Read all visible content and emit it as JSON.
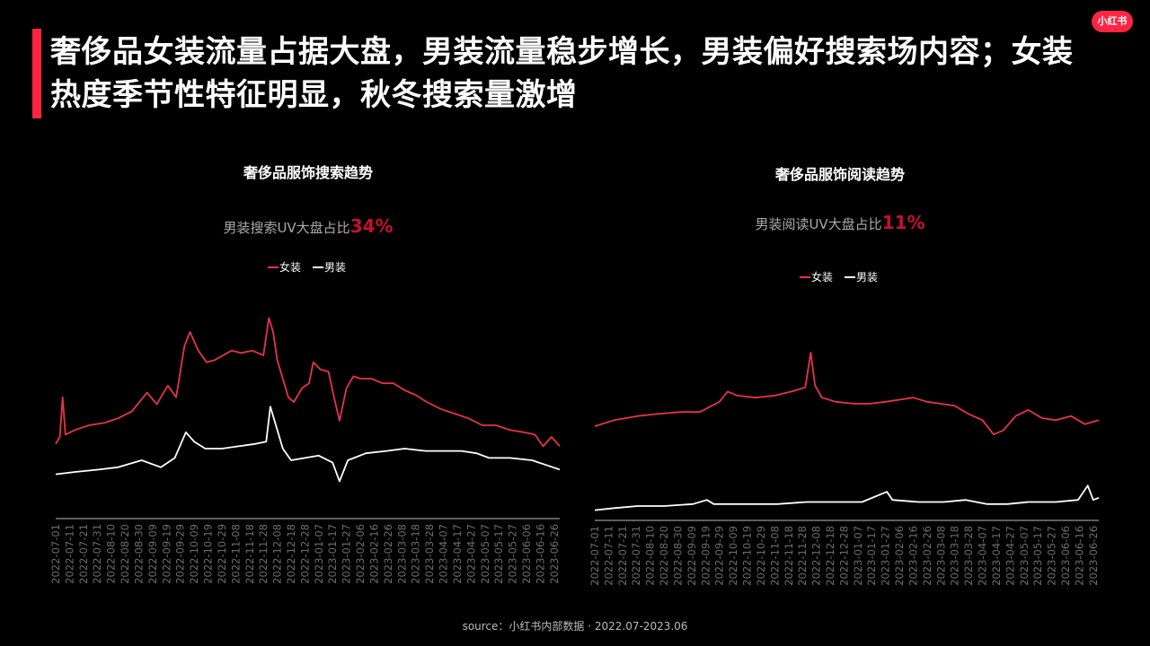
{
  "headline": "奢侈品女装流量占据大盘，男装流量稳步增长，男装偏好搜索场内容；女装热度季节性特征明显，秋冬搜索量激增",
  "logo": "小红书",
  "source": "source：小红书内部数据 · 2022.07-2023.06",
  "colors": {
    "women": "#e8334a",
    "men": "#ffffff",
    "accent": "#ff2442",
    "highlight": "#c8102e"
  },
  "chart_data": [
    {
      "type": "line",
      "title": "奢侈品服饰搜索趋势",
      "subtitle_prefix": "男装搜索UV大盘占比",
      "subtitle_value": "34%",
      "legend": [
        "女装",
        "男装"
      ],
      "legend_position": "top",
      "x_ticks": [
        "2022-07-01",
        "2022-07-11",
        "2022-07-21",
        "2022-07-31",
        "2022-08-10",
        "2022-08-20",
        "2022-08-30",
        "2022-09-09",
        "2022-09-19",
        "2022-09-29",
        "2022-10-09",
        "2022-10-19",
        "2022-10-29",
        "2022-11-08",
        "2022-11-18",
        "2022-11-28",
        "2022-12-08",
        "2022-12-18",
        "2022-12-28",
        "2023-01-07",
        "2023-01-17",
        "2023-01-27",
        "2023-02-06",
        "2023-02-16",
        "2023-02-26",
        "2023-03-08",
        "2023-03-18",
        "2023-03-28",
        "2023-04-07",
        "2023-04-17",
        "2023-04-27",
        "2023-05-07",
        "2023-05-17",
        "2023-05-27",
        "2023-06-06",
        "2023-06-16",
        "2023-06-26"
      ],
      "ylim": [
        0,
        100
      ],
      "grid": false,
      "series": [
        {
          "name": "女装",
          "values": [
            {
              "x": "2022-07-01",
              "y": 32
            },
            {
              "x": "2022-07-04",
              "y": 35
            },
            {
              "x": "2022-07-06",
              "y": 52
            },
            {
              "x": "2022-07-08",
              "y": 36
            },
            {
              "x": "2022-07-15",
              "y": 38
            },
            {
              "x": "2022-07-25",
              "y": 40
            },
            {
              "x": "2022-08-05",
              "y": 41
            },
            {
              "x": "2022-08-15",
              "y": 43
            },
            {
              "x": "2022-08-25",
              "y": 46
            },
            {
              "x": "2022-09-05",
              "y": 54
            },
            {
              "x": "2022-09-12",
              "y": 49
            },
            {
              "x": "2022-09-20",
              "y": 57
            },
            {
              "x": "2022-09-26",
              "y": 52
            },
            {
              "x": "2022-10-02",
              "y": 74
            },
            {
              "x": "2022-10-06",
              "y": 80
            },
            {
              "x": "2022-10-12",
              "y": 72
            },
            {
              "x": "2022-10-18",
              "y": 67
            },
            {
              "x": "2022-10-24",
              "y": 68
            },
            {
              "x": "2022-10-30",
              "y": 70
            },
            {
              "x": "2022-11-05",
              "y": 72
            },
            {
              "x": "2022-11-12",
              "y": 71
            },
            {
              "x": "2022-11-20",
              "y": 72
            },
            {
              "x": "2022-11-28",
              "y": 70
            },
            {
              "x": "2022-12-02",
              "y": 86
            },
            {
              "x": "2022-12-05",
              "y": 80
            },
            {
              "x": "2022-12-08",
              "y": 68
            },
            {
              "x": "2022-12-12",
              "y": 60
            },
            {
              "x": "2022-12-16",
              "y": 52
            },
            {
              "x": "2022-12-20",
              "y": 50
            },
            {
              "x": "2022-12-26",
              "y": 56
            },
            {
              "x": "2022-12-31",
              "y": 58
            },
            {
              "x": "2023-01-03",
              "y": 67
            },
            {
              "x": "2023-01-08",
              "y": 64
            },
            {
              "x": "2023-01-14",
              "y": 63
            },
            {
              "x": "2023-01-18",
              "y": 52
            },
            {
              "x": "2023-01-22",
              "y": 42
            },
            {
              "x": "2023-01-27",
              "y": 56
            },
            {
              "x": "2023-02-01",
              "y": 61
            },
            {
              "x": "2023-02-06",
              "y": 60
            },
            {
              "x": "2023-02-14",
              "y": 60
            },
            {
              "x": "2023-02-22",
              "y": 58
            },
            {
              "x": "2023-03-02",
              "y": 58
            },
            {
              "x": "2023-03-10",
              "y": 55
            },
            {
              "x": "2023-03-18",
              "y": 53
            },
            {
              "x": "2023-03-26",
              "y": 50
            },
            {
              "x": "2023-04-05",
              "y": 47
            },
            {
              "x": "2023-04-15",
              "y": 45
            },
            {
              "x": "2023-04-25",
              "y": 43
            },
            {
              "x": "2023-05-05",
              "y": 40
            },
            {
              "x": "2023-05-15",
              "y": 40
            },
            {
              "x": "2023-05-25",
              "y": 38
            },
            {
              "x": "2023-06-04",
              "y": 37
            },
            {
              "x": "2023-06-12",
              "y": 36
            },
            {
              "x": "2023-06-18",
              "y": 31
            },
            {
              "x": "2023-06-24",
              "y": 35
            },
            {
              "x": "2023-06-30",
              "y": 31
            }
          ]
        },
        {
          "name": "男装",
          "values": [
            {
              "x": "2022-07-01",
              "y": 19
            },
            {
              "x": "2022-07-15",
              "y": 20
            },
            {
              "x": "2022-08-01",
              "y": 21
            },
            {
              "x": "2022-08-15",
              "y": 22
            },
            {
              "x": "2022-09-01",
              "y": 25
            },
            {
              "x": "2022-09-15",
              "y": 22
            },
            {
              "x": "2022-09-25",
              "y": 26
            },
            {
              "x": "2022-10-03",
              "y": 37
            },
            {
              "x": "2022-10-09",
              "y": 33
            },
            {
              "x": "2022-10-17",
              "y": 30
            },
            {
              "x": "2022-10-29",
              "y": 30
            },
            {
              "x": "2022-11-10",
              "y": 31
            },
            {
              "x": "2022-11-22",
              "y": 32
            },
            {
              "x": "2022-11-30",
              "y": 33
            },
            {
              "x": "2022-12-03",
              "y": 48
            },
            {
              "x": "2022-12-07",
              "y": 40
            },
            {
              "x": "2022-12-12",
              "y": 30
            },
            {
              "x": "2022-12-18",
              "y": 25
            },
            {
              "x": "2022-12-28",
              "y": 26
            },
            {
              "x": "2023-01-07",
              "y": 27
            },
            {
              "x": "2023-01-17",
              "y": 24
            },
            {
              "x": "2023-01-22",
              "y": 16
            },
            {
              "x": "2023-01-28",
              "y": 25
            },
            {
              "x": "2023-02-10",
              "y": 28
            },
            {
              "x": "2023-02-25",
              "y": 29
            },
            {
              "x": "2023-03-10",
              "y": 30
            },
            {
              "x": "2023-03-25",
              "y": 29
            },
            {
              "x": "2023-04-07",
              "y": 29
            },
            {
              "x": "2023-04-20",
              "y": 29
            },
            {
              "x": "2023-05-01",
              "y": 28
            },
            {
              "x": "2023-05-10",
              "y": 26
            },
            {
              "x": "2023-05-25",
              "y": 26
            },
            {
              "x": "2023-06-10",
              "y": 25
            },
            {
              "x": "2023-06-20",
              "y": 23
            },
            {
              "x": "2023-06-30",
              "y": 21
            }
          ]
        }
      ]
    },
    {
      "type": "line",
      "title": "奢侈品服饰阅读趋势",
      "subtitle_prefix": "男装阅读UV大盘占比",
      "subtitle_value": "11%",
      "legend": [
        "女装",
        "男装"
      ],
      "legend_position": "top",
      "x_ticks": [
        "2022-07-01",
        "2022-07-11",
        "2022-07-21",
        "2022-07-31",
        "2022-08-10",
        "2022-08-20",
        "2022-08-30",
        "2022-09-09",
        "2022-09-19",
        "2022-09-29",
        "2022-10-09",
        "2022-10-19",
        "2022-10-29",
        "2022-11-08",
        "2022-11-18",
        "2022-11-28",
        "2022-12-08",
        "2022-12-18",
        "2022-12-28",
        "2023-01-07",
        "2023-01-17",
        "2023-01-27",
        "2023-02-06",
        "2023-02-16",
        "2023-02-26",
        "2023-03-08",
        "2023-03-18",
        "2023-03-28",
        "2023-04-07",
        "2023-04-17",
        "2023-04-27",
        "2023-05-07",
        "2023-05-17",
        "2023-05-27",
        "2023-06-06",
        "2023-06-16",
        "2023-06-26"
      ],
      "ylim": [
        0,
        100
      ],
      "grid": false,
      "series": [
        {
          "name": "女装",
          "values": [
            {
              "x": "2022-07-01",
              "y": 46
            },
            {
              "x": "2022-07-15",
              "y": 49
            },
            {
              "x": "2022-08-01",
              "y": 51
            },
            {
              "x": "2022-08-15",
              "y": 52
            },
            {
              "x": "2022-09-01",
              "y": 53
            },
            {
              "x": "2022-09-15",
              "y": 53
            },
            {
              "x": "2022-09-29",
              "y": 58
            },
            {
              "x": "2022-10-05",
              "y": 63
            },
            {
              "x": "2022-10-12",
              "y": 61
            },
            {
              "x": "2022-10-25",
              "y": 60
            },
            {
              "x": "2022-11-08",
              "y": 61
            },
            {
              "x": "2022-11-20",
              "y": 63
            },
            {
              "x": "2022-11-30",
              "y": 65
            },
            {
              "x": "2022-12-04",
              "y": 82
            },
            {
              "x": "2022-12-07",
              "y": 66
            },
            {
              "x": "2022-12-12",
              "y": 60
            },
            {
              "x": "2022-12-22",
              "y": 58
            },
            {
              "x": "2023-01-05",
              "y": 57
            },
            {
              "x": "2023-01-15",
              "y": 57
            },
            {
              "x": "2023-01-27",
              "y": 58
            },
            {
              "x": "2023-02-06",
              "y": 59
            },
            {
              "x": "2023-02-16",
              "y": 60
            },
            {
              "x": "2023-02-26",
              "y": 58
            },
            {
              "x": "2023-03-08",
              "y": 57
            },
            {
              "x": "2023-03-18",
              "y": 56
            },
            {
              "x": "2023-03-28",
              "y": 52
            },
            {
              "x": "2023-04-07",
              "y": 49
            },
            {
              "x": "2023-04-15",
              "y": 42
            },
            {
              "x": "2023-04-22",
              "y": 44
            },
            {
              "x": "2023-05-01",
              "y": 51
            },
            {
              "x": "2023-05-10",
              "y": 54
            },
            {
              "x": "2023-05-20",
              "y": 50
            },
            {
              "x": "2023-05-30",
              "y": 49
            },
            {
              "x": "2023-06-10",
              "y": 51
            },
            {
              "x": "2023-06-20",
              "y": 47
            },
            {
              "x": "2023-06-30",
              "y": 49
            }
          ]
        },
        {
          "name": "男装",
          "values": [
            {
              "x": "2022-07-01",
              "y": 5
            },
            {
              "x": "2022-07-15",
              "y": 6
            },
            {
              "x": "2022-08-01",
              "y": 7
            },
            {
              "x": "2022-08-20",
              "y": 7
            },
            {
              "x": "2022-09-10",
              "y": 8
            },
            {
              "x": "2022-09-20",
              "y": 10
            },
            {
              "x": "2022-09-25",
              "y": 8
            },
            {
              "x": "2022-10-20",
              "y": 8
            },
            {
              "x": "2022-11-10",
              "y": 8
            },
            {
              "x": "2022-12-01",
              "y": 9
            },
            {
              "x": "2022-12-20",
              "y": 9
            },
            {
              "x": "2023-01-10",
              "y": 9
            },
            {
              "x": "2023-01-28",
              "y": 14
            },
            {
              "x": "2023-02-01",
              "y": 10
            },
            {
              "x": "2023-02-20",
              "y": 9
            },
            {
              "x": "2023-03-10",
              "y": 9
            },
            {
              "x": "2023-03-26",
              "y": 10
            },
            {
              "x": "2023-04-10",
              "y": 8
            },
            {
              "x": "2023-04-25",
              "y": 8
            },
            {
              "x": "2023-05-10",
              "y": 9
            },
            {
              "x": "2023-05-30",
              "y": 9
            },
            {
              "x": "2023-06-15",
              "y": 10
            },
            {
              "x": "2023-06-22",
              "y": 17
            },
            {
              "x": "2023-06-26",
              "y": 10
            },
            {
              "x": "2023-06-30",
              "y": 11
            }
          ]
        }
      ]
    }
  ]
}
